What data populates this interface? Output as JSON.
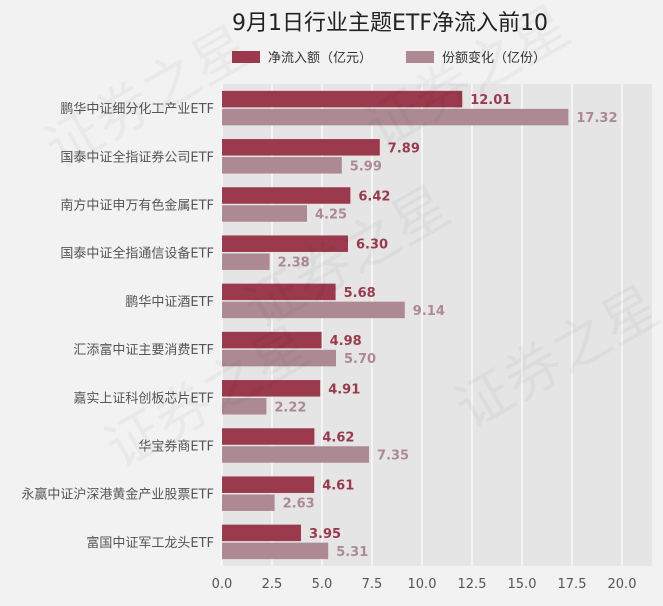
{
  "chart_data": {
    "type": "bar",
    "orientation": "horizontal",
    "title": "9月1日行业主题ETF净流入前10",
    "categories": [
      "鹏华中证细分化工产业ETF",
      "国泰中证全指证券公司ETF",
      "南方中证申万有色金属ETF",
      "国泰中证全指通信设备ETF",
      "鹏华中证酒ETF",
      "汇添富中证主要消费ETF",
      "嘉实上证科创板芯片ETF",
      "华宝券商ETF",
      "永赢中证沪深港黄金产业股票ETF",
      "富国中证军工龙头ETF"
    ],
    "series": [
      {
        "name": "净流入额（亿元）",
        "color": "#9b3a4c",
        "values": [
          12.01,
          7.89,
          6.42,
          6.3,
          5.68,
          4.98,
          4.91,
          4.62,
          4.61,
          3.95
        ],
        "labels": [
          "12.01",
          "7.89",
          "6.42",
          "6.30",
          "5.68",
          "4.98",
          "4.91",
          "4.62",
          "4.61",
          "3.95"
        ]
      },
      {
        "name": "份额变化（亿份）",
        "color": "#ad8a93",
        "values": [
          17.32,
          5.99,
          4.25,
          2.38,
          9.14,
          5.7,
          2.22,
          7.35,
          2.63,
          5.31
        ],
        "labels": [
          "17.32",
          "5.99",
          "4.25",
          "2.38",
          "9.14",
          "5.70",
          "2.22",
          "7.35",
          "2.63",
          "5.31"
        ]
      }
    ],
    "xlim": [
      0,
      21.5
    ],
    "xticks": [
      0,
      2.5,
      5,
      7.5,
      10,
      12.5,
      15,
      17.5,
      20
    ],
    "xtick_labels": [
      "0.0",
      "2.5",
      "5.0",
      "7.5",
      "10.0",
      "12.5",
      "15.0",
      "17.5",
      "20.0"
    ],
    "grid": true,
    "legend_position": "top"
  },
  "watermark": "证券之星"
}
